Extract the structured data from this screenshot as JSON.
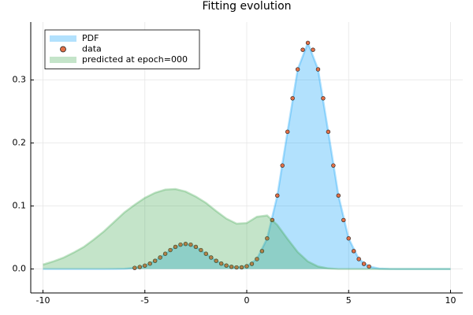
{
  "chart_data": {
    "type": "area",
    "title": "Fitting evolution",
    "xlim": [
      -10.6,
      10.6
    ],
    "ylim": [
      -0.038,
      0.392
    ],
    "xticks": [
      -10,
      -5,
      0,
      5,
      10
    ],
    "yticks": [
      {
        "value": 0,
        "label": "0.0"
      },
      0.1,
      0.2,
      0.3
    ],
    "grid": true,
    "legend": "top-left",
    "series": [
      {
        "name": "PDF",
        "type": "area",
        "color": "#009af9",
        "x": [
          -10,
          -9.5,
          -9,
          -8.5,
          -8,
          -7.5,
          -7,
          -6.5,
          -6,
          -5.5,
          -5,
          -4.5,
          -4,
          -3.5,
          -3,
          -2.5,
          -2,
          -1.5,
          -1,
          -0.5,
          0,
          0.5,
          1,
          1.5,
          2,
          2.5,
          3,
          3.5,
          4,
          4.5,
          5,
          5.5,
          6,
          6.5,
          7,
          7.5,
          8,
          8.5,
          9,
          9.5,
          10
        ],
        "values": [
          0,
          0,
          0,
          0,
          0,
          0,
          0,
          0.0001,
          0.0004,
          0.0018,
          0.0054,
          0.013,
          0.0242,
          0.0352,
          0.0399,
          0.0352,
          0.0242,
          0.013,
          0.0055,
          0.0026,
          0.0044,
          0.0158,
          0.0486,
          0.1166,
          0.2178,
          0.3169,
          0.359,
          0.3169,
          0.2178,
          0.1166,
          0.0486,
          0.0158,
          0.004,
          0.0008,
          0.0001,
          0,
          0,
          0,
          0,
          0,
          0
        ]
      },
      {
        "name": "data",
        "type": "scatter",
        "color": "#e26f46",
        "x": [
          -5.5,
          -5.25,
          -5,
          -4.75,
          -4.5,
          -4.25,
          -4,
          -3.75,
          -3.5,
          -3.25,
          -3,
          -2.75,
          -2.5,
          -2.25,
          -2,
          -1.75,
          -1.5,
          -1.25,
          -1,
          -0.75,
          -0.5,
          -0.25,
          0,
          0.25,
          0.5,
          0.75,
          1,
          1.25,
          1.5,
          1.75,
          2,
          2.25,
          2.5,
          2.75,
          3,
          3.25,
          3.5,
          3.75,
          4,
          4.25,
          4.5,
          4.75,
          5,
          5.25,
          5.5,
          5.75,
          6
        ],
        "values": [
          0.0018,
          0.0032,
          0.0054,
          0.0086,
          0.013,
          0.0183,
          0.0242,
          0.0301,
          0.0352,
          0.0387,
          0.0399,
          0.0387,
          0.0352,
          0.0301,
          0.0242,
          0.0183,
          0.013,
          0.0086,
          0.0055,
          0.0035,
          0.0026,
          0.0027,
          0.0044,
          0.0082,
          0.0158,
          0.0285,
          0.0486,
          0.0777,
          0.1166,
          0.1643,
          0.2178,
          0.271,
          0.3169,
          0.348,
          0.359,
          0.348,
          0.3169,
          0.271,
          0.2178,
          0.1643,
          0.1166,
          0.0777,
          0.0486,
          0.0285,
          0.0158,
          0.0082,
          0.004
        ]
      },
      {
        "name": "predicted at epoch=000",
        "type": "area",
        "color": "#3da44d",
        "x": [
          -10,
          -9.5,
          -9,
          -8.5,
          -8,
          -7.5,
          -7,
          -6.5,
          -6,
          -5.5,
          -5,
          -4.5,
          -4,
          -3.5,
          -3,
          -2.5,
          -2,
          -1.5,
          -1,
          -0.5,
          0,
          0.5,
          1,
          1.5,
          2,
          2.5,
          3,
          3.5,
          4,
          4.5,
          5,
          5.5,
          6,
          6.5,
          7,
          7.5,
          8,
          8.5,
          9,
          9.5,
          10
        ],
        "values": [
          0.007,
          0.012,
          0.018,
          0.026,
          0.035,
          0.047,
          0.06,
          0.075,
          0.09,
          0.102,
          0.113,
          0.121,
          0.126,
          0.127,
          0.123,
          0.115,
          0.105,
          0.092,
          0.08,
          0.072,
          0.073,
          0.083,
          0.085,
          0.07,
          0.048,
          0.027,
          0.012,
          0.004,
          0.001,
          0,
          0,
          0,
          0,
          0,
          0,
          0,
          0,
          0,
          0,
          0,
          0
        ]
      }
    ]
  }
}
